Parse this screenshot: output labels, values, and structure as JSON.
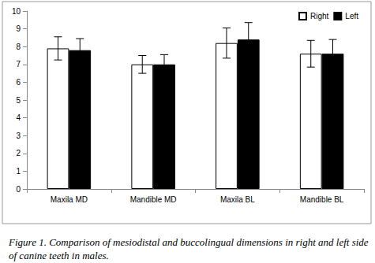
{
  "chart_data": {
    "type": "bar",
    "title": "Figure 1. Comparison of mesiodistal and buccolingual dimensions in right and left side of canine teeth in males.",
    "categories": [
      "Maxila MD",
      "Mandible MD",
      "Maxila BL",
      "Mandible BL"
    ],
    "series": [
      {
        "name": "Right",
        "color": "#ffffff",
        "values": [
          7.9,
          7.0,
          8.2,
          7.6
        ],
        "errors": [
          0.65,
          0.5,
          0.85,
          0.75
        ]
      },
      {
        "name": "Left",
        "color": "#000000",
        "values": [
          7.8,
          7.0,
          8.4,
          7.6
        ],
        "errors": [
          0.65,
          0.55,
          0.95,
          0.8
        ]
      }
    ],
    "ylim": [
      0,
      10
    ],
    "yticks": [
      0,
      1,
      2,
      3,
      4,
      5,
      6,
      7,
      8,
      9,
      10
    ],
    "grid": false,
    "legend": "upper right"
  }
}
